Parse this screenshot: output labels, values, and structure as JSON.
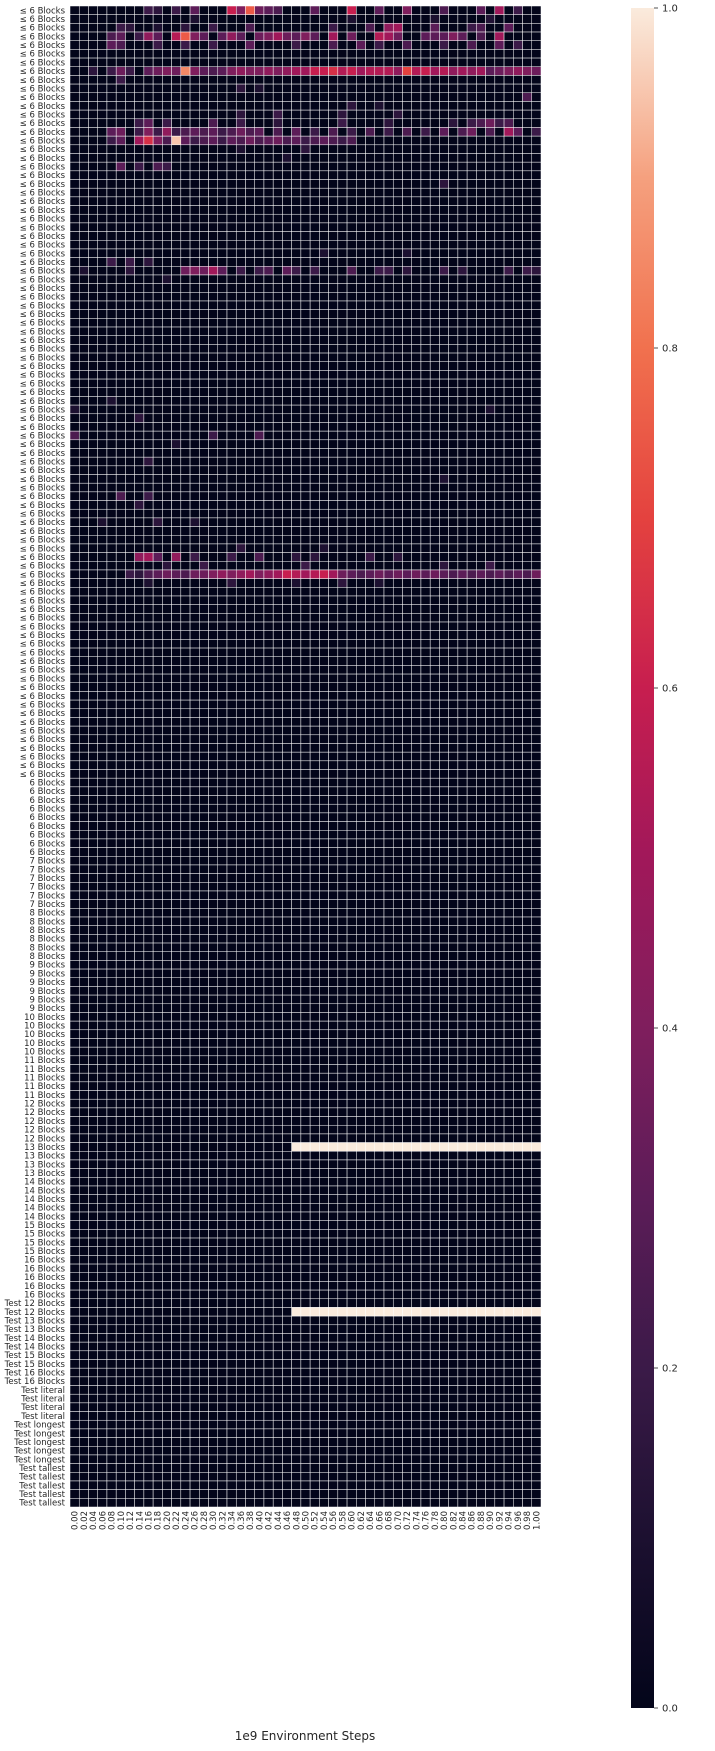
{
  "chart_data": {
    "type": "heatmap",
    "title": "",
    "xlabel": "1e9 Environment Steps",
    "ylabel": "",
    "colormap": "rocket",
    "colorbar": {
      "range": [
        0,
        1
      ],
      "ticks": [
        "0.0",
        "0.2",
        "0.4",
        "0.6",
        "0.8",
        "1.0"
      ]
    },
    "x_tick_labels": [
      "0.00",
      "0.02",
      "0.04",
      "0.06",
      "0.08",
      "0.10",
      "0.12",
      "0.14",
      "0.16",
      "0.18",
      "0.20",
      "0.22",
      "0.24",
      "0.26",
      "0.28",
      "0.30",
      "0.32",
      "0.34",
      "0.36",
      "0.38",
      "0.40",
      "0.42",
      "0.44",
      "0.46",
      "0.48",
      "0.50",
      "0.52",
      "0.54",
      "0.56",
      "0.58",
      "0.60",
      "0.62",
      "0.64",
      "0.66",
      "0.68",
      "0.70",
      "0.72",
      "0.74",
      "0.76",
      "0.78",
      "0.80",
      "0.82",
      "0.84",
      "0.86",
      "0.88",
      "0.90",
      "0.92",
      "0.94",
      "0.96",
      "0.98",
      "1.00"
    ],
    "row_groups": [
      {
        "label": "≤ 6 Blocks",
        "count": 89
      },
      {
        "label": "6 Blocks",
        "count": 9
      },
      {
        "label": "7 Blocks",
        "count": 6
      },
      {
        "label": "8 Blocks",
        "count": 6
      },
      {
        "label": "9 Blocks",
        "count": 6
      },
      {
        "label": "10 Blocks",
        "count": 5
      },
      {
        "label": "11 Blocks",
        "count": 5
      },
      {
        "label": "12 Blocks",
        "count": 5
      },
      {
        "label": "13 Blocks",
        "count": 4
      },
      {
        "label": "14 Blocks",
        "count": 5
      },
      {
        "label": "15 Blocks",
        "count": 4
      },
      {
        "label": "16 Blocks",
        "count": 5
      },
      {
        "label": "Test 12 Blocks",
        "count": 2
      },
      {
        "label": "Test 13 Blocks",
        "count": 2
      },
      {
        "label": "Test 14 Blocks",
        "count": 2
      },
      {
        "label": "Test 15 Blocks",
        "count": 2
      },
      {
        "label": "Test 16 Blocks",
        "count": 2
      },
      {
        "label": "Test literal",
        "count": 4
      },
      {
        "label": "Test longest",
        "count": 5
      },
      {
        "label": "Test tallest",
        "count": 5
      }
    ],
    "values": {
      "default": 0.0,
      "rows": [
        {
          "row": 0,
          "values": {
            "8": 0.2,
            "9": 0.15,
            "11": 0.2,
            "13": 0.3,
            "17": 0.6,
            "18": 0.4,
            "19": 0.75,
            "20": 0.35,
            "21": 0.3,
            "22": 0.25,
            "26": 0.3,
            "30": 0.6,
            "33": 0.3,
            "36": 0.4,
            "40": 0.25,
            "44": 0.3,
            "46": 0.5,
            "48": 0.2
          }
        },
        {
          "row": 1,
          "values": {
            "13": 0.1,
            "30": 0.1,
            "39": 0.1,
            "45": 0.12
          }
        },
        {
          "row": 2,
          "values": {
            "5": 0.2,
            "6": 0.15,
            "9": 0.1,
            "12": 0.15,
            "15": 0.2,
            "19": 0.25,
            "28": 0.2,
            "32": 0.25,
            "34": 0.45,
            "35": 0.5,
            "39": 0.3,
            "43": 0.2,
            "44": 0.25,
            "47": 0.3
          }
        },
        {
          "row": 3,
          "values": {
            "4": 0.25,
            "5": 0.3,
            "7": 0.2,
            "8": 0.45,
            "9": 0.3,
            "11": 0.55,
            "12": 0.75,
            "13": 0.4,
            "14": 0.3,
            "16": 0.3,
            "17": 0.45,
            "18": 0.3,
            "20": 0.35,
            "21": 0.4,
            "22": 0.5,
            "23": 0.35,
            "24": 0.3,
            "25": 0.4,
            "26": 0.3,
            "28": 0.5,
            "30": 0.35,
            "33": 0.55,
            "34": 0.5,
            "35": 0.35,
            "38": 0.3,
            "39": 0.3,
            "40": 0.3,
            "41": 0.4,
            "42": 0.3,
            "44": 0.25,
            "46": 0.5
          }
        },
        {
          "row": 4,
          "values": {
            "4": 0.3,
            "5": 0.25,
            "9": 0.2,
            "12": 0.2,
            "15": 0.2,
            "19": 0.3,
            "24": 0.2,
            "28": 0.25,
            "31": 0.3,
            "33": 0.2,
            "36": 0.25,
            "40": 0.2,
            "43": 0.25,
            "46": 0.3,
            "48": 0.2
          }
        },
        {
          "row": 7,
          "values": {
            "2": 0.15,
            "4": 0.2,
            "5": 0.35,
            "6": 0.2,
            "8": 0.3,
            "9": 0.35,
            "10": 0.4,
            "11": 0.35,
            "12": 0.85,
            "13": 0.4,
            "14": 0.3,
            "15": 0.25,
            "16": 0.3,
            "17": 0.4,
            "18": 0.45,
            "19": 0.4,
            "20": 0.4,
            "21": 0.45,
            "22": 0.4,
            "23": 0.45,
            "24": 0.5,
            "25": 0.5,
            "26": 0.6,
            "27": 0.6,
            "28": 0.65,
            "29": 0.55,
            "30": 0.6,
            "31": 0.5,
            "32": 0.55,
            "33": 0.55,
            "34": 0.55,
            "35": 0.45,
            "36": 0.7,
            "37": 0.55,
            "38": 0.6,
            "39": 0.5,
            "40": 0.55,
            "41": 0.45,
            "42": 0.5,
            "43": 0.45,
            "44": 0.5,
            "45": 0.3,
            "46": 0.35,
            "47": 0.4,
            "48": 0.45,
            "49": 0.4,
            "50": 0.35
          }
        },
        {
          "row": 8,
          "values": {
            "5": 0.2
          }
        },
        {
          "row": 9,
          "values": {
            "18": 0.15,
            "20": 0.1
          }
        },
        {
          "row": 10,
          "values": {
            "49": 0.25
          }
        },
        {
          "row": 11,
          "values": {
            "30": 0.15,
            "33": 0.1
          }
        },
        {
          "row": 12,
          "values": {
            "18": 0.15,
            "22": 0.2,
            "29": 0.15,
            "35": 0.15
          }
        },
        {
          "row": 13,
          "values": {
            "7": 0.2,
            "8": 0.3,
            "10": 0.2,
            "15": 0.25,
            "18": 0.2,
            "22": 0.15,
            "29": 0.2,
            "34": 0.15,
            "41": 0.15,
            "43": 0.2,
            "44": 0.25,
            "45": 0.35,
            "46": 0.2,
            "47": 0.25
          }
        },
        {
          "row": 14,
          "values": {
            "4": 0.3,
            "5": 0.35,
            "7": 0.2,
            "8": 0.4,
            "9": 0.2,
            "10": 0.45,
            "11": 0.2,
            "12": 0.25,
            "13": 0.3,
            "14": 0.25,
            "15": 0.3,
            "16": 0.2,
            "17": 0.25,
            "18": 0.35,
            "19": 0.25,
            "20": 0.3,
            "22": 0.25,
            "24": 0.3,
            "26": 0.2,
            "28": 0.25,
            "30": 0.2,
            "32": 0.25,
            "34": 0.2,
            "36": 0.25,
            "38": 0.2,
            "40": 0.3,
            "42": 0.25,
            "43": 0.35,
            "45": 0.25,
            "47": 0.5,
            "48": 0.3,
            "50": 0.2
          }
        },
        {
          "row": 15,
          "values": {
            "4": 0.2,
            "5": 0.3,
            "7": 0.5,
            "8": 0.65,
            "9": 0.4,
            "10": 0.25,
            "11": 0.95,
            "12": 0.3,
            "13": 0.2,
            "14": 0.25,
            "15": 0.3,
            "16": 0.2,
            "17": 0.3,
            "18": 0.25,
            "19": 0.35,
            "20": 0.25,
            "21": 0.3,
            "22": 0.35,
            "23": 0.25,
            "24": 0.3,
            "25": 0.2,
            "26": 0.25,
            "27": 0.3,
            "28": 0.25,
            "29": 0.2,
            "30": 0.25
          }
        },
        {
          "row": 16,
          "values": {
            "18": 0.1,
            "25": 0.15
          }
        },
        {
          "row": 17,
          "values": {
            "23": 0.1
          }
        },
        {
          "row": 18,
          "values": {
            "5": 0.3,
            "7": 0.2,
            "9": 0.25,
            "10": 0.2
          }
        },
        {
          "row": 20,
          "values": {
            "40": 0.15
          }
        },
        {
          "row": 28,
          "values": {
            "27": 0.1,
            "36": 0.1
          }
        },
        {
          "row": 29,
          "values": {
            "4": 0.2,
            "6": 0.2,
            "8": 0.15
          }
        },
        {
          "row": 30,
          "values": {
            "1": 0.1,
            "6": 0.15,
            "12": 0.35,
            "13": 0.4,
            "14": 0.35,
            "15": 0.5,
            "16": 0.3,
            "18": 0.2,
            "20": 0.2,
            "21": 0.25,
            "23": 0.3,
            "24": 0.2,
            "26": 0.2,
            "30": 0.25,
            "33": 0.2,
            "34": 0.2,
            "36": 0.15,
            "40": 0.2,
            "42": 0.15,
            "47": 0.2,
            "49": 0.2,
            "50": 0.15
          }
        },
        {
          "row": 31,
          "values": {
            "10": 0.1
          }
        },
        {
          "row": 45,
          "values": {
            "4": 0.1
          }
        },
        {
          "row": 46,
          "values": {
            "0": 0.1,
            "45": 0.1
          }
        },
        {
          "row": 47,
          "values": {
            "7": 0.15
          }
        },
        {
          "row": 49,
          "values": {
            "0": 0.25,
            "15": 0.2,
            "20": 0.25
          }
        },
        {
          "row": 50,
          "values": {
            "11": 0.1
          }
        },
        {
          "row": 52,
          "values": {
            "8": 0.15
          }
        },
        {
          "row": 54,
          "values": {
            "40": 0.1
          }
        },
        {
          "row": 56,
          "values": {
            "5": 0.25,
            "8": 0.2
          }
        },
        {
          "row": 57,
          "values": {
            "7": 0.15
          }
        },
        {
          "row": 59,
          "values": {
            "3": 0.1,
            "9": 0.15,
            "13": 0.1
          }
        },
        {
          "row": 62,
          "values": {
            "18": 0.15,
            "27": 0.1
          }
        },
        {
          "row": 63,
          "values": {
            "7": 0.45,
            "8": 0.5,
            "9": 0.3,
            "11": 0.45,
            "13": 0.2,
            "17": 0.2,
            "20": 0.25,
            "24": 0.15,
            "26": 0.15,
            "32": 0.2,
            "35": 0.15
          }
        },
        {
          "row": 64,
          "values": {
            "10": 0.15,
            "14": 0.2,
            "25": 0.2,
            "40": 0.15,
            "45": 0.2
          }
        },
        {
          "row": 65,
          "values": {
            "6": 0.2,
            "7": 0.15,
            "8": 0.25,
            "9": 0.3,
            "10": 0.35,
            "11": 0.3,
            "12": 0.25,
            "13": 0.35,
            "14": 0.35,
            "15": 0.4,
            "16": 0.45,
            "17": 0.4,
            "18": 0.45,
            "19": 0.5,
            "20": 0.4,
            "21": 0.45,
            "22": 0.5,
            "23": 0.6,
            "24": 0.55,
            "25": 0.5,
            "26": 0.55,
            "27": 0.6,
            "28": 0.5,
            "29": 0.35,
            "30": 0.3,
            "31": 0.25,
            "32": 0.3,
            "33": 0.35,
            "34": 0.3,
            "35": 0.35,
            "36": 0.3,
            "37": 0.35,
            "38": 0.3,
            "39": 0.35,
            "40": 0.3,
            "41": 0.25,
            "42": 0.3,
            "43": 0.25,
            "44": 0.3,
            "45": 0.25,
            "46": 0.3,
            "47": 0.25,
            "48": 0.3,
            "49": 0.25,
            "50": 0.35
          }
        },
        {
          "row": 66,
          "values": {
            "8": 0.1,
            "17": 0.15,
            "24": 0.1,
            "29": 0.15,
            "33": 0.1
          }
        },
        {
          "row": 131,
          "values": {
            "24": 1.0,
            "25": 1.0,
            "26": 1.0,
            "27": 1.0,
            "28": 1.0,
            "29": 1.0,
            "30": 1.0,
            "31": 1.0,
            "32": 1.0,
            "33": 1.0,
            "34": 1.0,
            "35": 1.0,
            "36": 1.0,
            "37": 1.0,
            "38": 1.0,
            "39": 1.0,
            "40": 1.0,
            "41": 1.0,
            "42": 1.0,
            "43": 1.0,
            "44": 1.0,
            "45": 1.0,
            "46": 1.0,
            "47": 1.0,
            "48": 1.0,
            "49": 1.0,
            "50": 1.0
          }
        },
        {
          "row": 150,
          "values": {
            "24": 1.0,
            "25": 1.0,
            "26": 1.0,
            "27": 1.0,
            "28": 1.0,
            "29": 1.0,
            "30": 1.0,
            "31": 1.0,
            "32": 1.0,
            "33": 1.0,
            "34": 1.0,
            "35": 1.0,
            "36": 1.0,
            "37": 1.0,
            "38": 1.0,
            "39": 1.0,
            "40": 1.0,
            "41": 1.0,
            "42": 1.0,
            "43": 1.0,
            "44": 1.0,
            "45": 1.0,
            "46": 1.0,
            "47": 1.0,
            "48": 1.0,
            "49": 1.0,
            "50": 1.0
          }
        }
      ]
    }
  }
}
